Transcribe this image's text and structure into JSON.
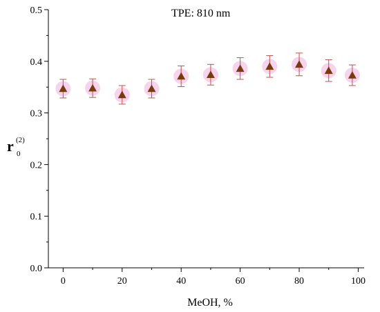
{
  "chart_data": {
    "type": "scatter",
    "title": "",
    "annotation": "TPE: 810 nm",
    "xlabel": "MeOH, %",
    "ylabel": {
      "main": "r",
      "sub": "0",
      "sup": "(2)"
    },
    "xlim": [
      -5,
      102
    ],
    "ylim": [
      0,
      0.5
    ],
    "xticks": [
      0,
      20,
      40,
      60,
      80,
      100
    ],
    "yticks": [
      0.0,
      0.1,
      0.2,
      0.3,
      0.4,
      0.5
    ],
    "ytick_labels": [
      "0.0",
      "0.1",
      "0.2",
      "0.3",
      "0.4",
      "0.5"
    ],
    "grid": false,
    "marker": "triangle",
    "marker_color": "#7a3a10",
    "error_color": "#c0504d",
    "halo_color": "#f4c6e6",
    "series": [
      {
        "x": [
          0,
          10,
          20,
          30,
          40,
          50,
          60,
          70,
          80,
          90,
          98
        ],
        "y": [
          0.347,
          0.348,
          0.335,
          0.347,
          0.371,
          0.374,
          0.386,
          0.39,
          0.394,
          0.382,
          0.373
        ],
        "yerr": [
          0.018,
          0.018,
          0.018,
          0.018,
          0.02,
          0.02,
          0.021,
          0.021,
          0.022,
          0.021,
          0.02
        ]
      }
    ]
  }
}
